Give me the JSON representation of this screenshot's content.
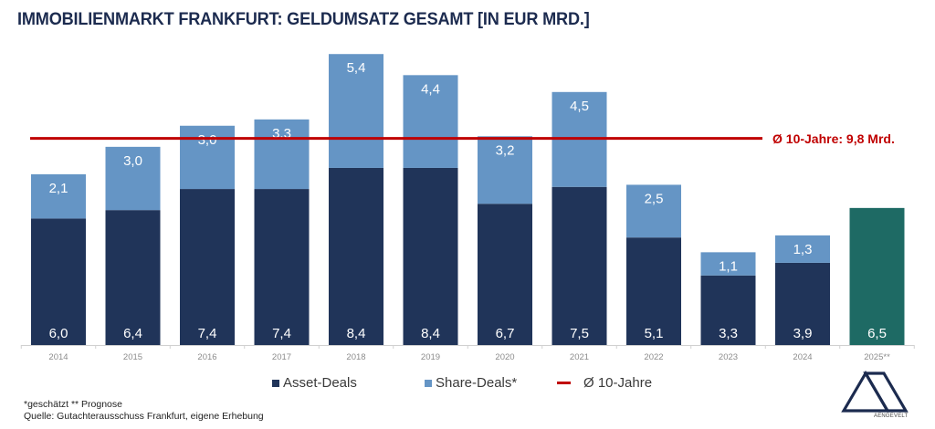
{
  "title": "IMMOBILIENMARKT FRANKFURT: GELDUMSATZ GESAMT [IN EUR MRD.]",
  "colors": {
    "asset": "#203459",
    "share": "#6595c5",
    "forecast": "#1e6a64",
    "average": "#c00000",
    "title": "#1c2b4f"
  },
  "chart_data": {
    "type": "bar",
    "stacked": true,
    "title": "IMMOBILIENMARKT FRANKFURT: GELDUMSATZ GESAMT [IN EUR MRD.]",
    "xlabel": "",
    "ylabel": "",
    "categories": [
      "2014",
      "2015",
      "2016",
      "2017",
      "2018",
      "2019",
      "2020",
      "2021",
      "2022",
      "2023",
      "2024",
      "2025**"
    ],
    "series": [
      {
        "name": "Asset-Deals",
        "values": [
          6.0,
          6.4,
          7.4,
          7.4,
          8.4,
          8.4,
          6.7,
          7.5,
          5.1,
          3.3,
          3.9,
          6.5
        ],
        "labels": [
          "6,0",
          "6,4",
          "7,4",
          "7,4",
          "8,4",
          "8,4",
          "6,7",
          "7,5",
          "5,1",
          "3,3",
          "3,9",
          "6,5"
        ]
      },
      {
        "name": "Share-Deals*",
        "values": [
          2.1,
          3.0,
          3.0,
          3.3,
          5.4,
          4.4,
          3.2,
          4.5,
          2.5,
          1.1,
          1.3,
          null
        ],
        "labels": [
          "2,1",
          "3,0",
          "3,0",
          "3,3",
          "5,4",
          "4,4",
          "3,2",
          "4,5",
          "2,5",
          "1,1",
          "1,3",
          ""
        ]
      }
    ],
    "forecast_category": "2025**",
    "reference_line": {
      "name": "Ø 10-Jahre",
      "value": 9.8,
      "label": "Ø 10-Jahre: 9,8 Mrd."
    },
    "ylim": [
      0,
      14
    ],
    "grid": false,
    "legend": {
      "position": "bottom",
      "entries": [
        "Asset-Deals",
        "Share-Deals*",
        "Ø 10-Jahre"
      ]
    }
  },
  "footnotes": {
    "line1": "*geschätzt  ** Prognose",
    "line2": "Quelle: Gutachterausschuss Frankfurt, eigene Erhebung"
  },
  "logo": {
    "text": "AENGEVELT"
  }
}
